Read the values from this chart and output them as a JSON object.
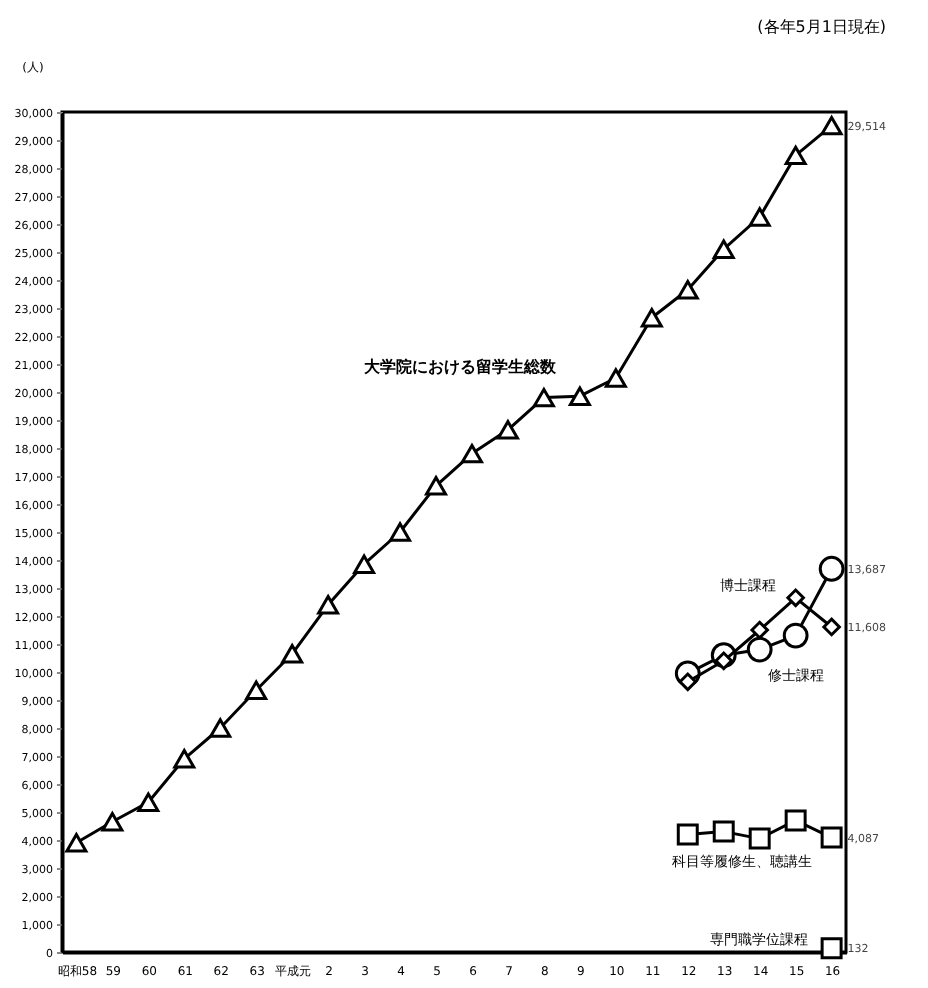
{
  "chart_data": {
    "type": "line",
    "ylabel": "(人)",
    "annotations": [
      "(各年5月1日現在)"
    ],
    "categories": [
      "昭和58",
      "59",
      "60",
      "61",
      "62",
      "63",
      "平成元",
      "2",
      "3",
      "4",
      "5",
      "6",
      "7",
      "8",
      "9",
      "10",
      "11",
      "12",
      "13",
      "14",
      "15",
      "16"
    ],
    "ylim": [
      0,
      30000
    ],
    "yticks": [
      0,
      {
        "value": 1000,
        "label": "1,000"
      },
      {
        "value": 2000,
        "label": "2,000"
      },
      {
        "value": 3000,
        "label": "3,000"
      },
      {
        "value": 4000,
        "label": "4,000"
      },
      {
        "value": 5000,
        "label": "5,000"
      },
      {
        "value": 6000,
        "label": "6,000"
      },
      {
        "value": 7000,
        "label": "7,000"
      },
      {
        "value": 8000,
        "label": "8,000"
      },
      {
        "value": 9000,
        "label": "9,000"
      },
      {
        "value": 10000,
        "label": "10,000"
      },
      {
        "value": 11000,
        "label": "11,000"
      },
      {
        "value": 12000,
        "label": "12,000"
      },
      {
        "value": 13000,
        "label": "13,000"
      },
      {
        "value": 14000,
        "label": "14,000"
      },
      {
        "value": 15000,
        "label": "15,000"
      },
      {
        "value": 16000,
        "label": "16,000"
      },
      {
        "value": 17000,
        "label": "17,000"
      },
      {
        "value": 18000,
        "label": "18,000"
      },
      {
        "value": 19000,
        "label": "19,000"
      },
      {
        "value": 20000,
        "label": "20,000"
      },
      {
        "value": 21000,
        "label": "21,000"
      },
      {
        "value": 22000,
        "label": "22,000"
      },
      {
        "value": 23000,
        "label": "23,000"
      },
      {
        "value": 24000,
        "label": "24,000"
      },
      {
        "value": 25000,
        "label": "25,000"
      },
      {
        "value": 26000,
        "label": "26,000"
      },
      {
        "value": 27000,
        "label": "27,000"
      },
      {
        "value": 28000,
        "label": "28,000"
      },
      {
        "value": 29000,
        "label": "29,000"
      },
      {
        "value": 30000,
        "label": "30,000"
      }
    ],
    "grid": false,
    "legend": false,
    "line_style": "solid",
    "series": [
      {
        "name": "大学院における留学生総数",
        "color": "#000000",
        "marker": "triangle",
        "values": [
          3900,
          4650,
          5350,
          6900,
          8000,
          9350,
          10650,
          12400,
          13850,
          15000,
          16650,
          17800,
          18650,
          19800,
          19850,
          20500,
          22650,
          23650,
          25100,
          26250,
          28450,
          29514
        ],
        "value_labels": [
          null,
          null,
          null,
          null,
          null,
          null,
          null,
          null,
          null,
          null,
          null,
          null,
          null,
          null,
          null,
          null,
          null,
          null,
          null,
          null,
          null,
          "29,514"
        ]
      },
      {
        "name": "修士課程",
        "color": "#000000",
        "marker": "circle",
        "values": [
          null,
          null,
          null,
          null,
          null,
          null,
          null,
          null,
          null,
          null,
          null,
          null,
          null,
          null,
          null,
          null,
          null,
          9950,
          10600,
          10800,
          11300,
          13687
        ],
        "value_labels": [
          null,
          null,
          null,
          null,
          null,
          null,
          null,
          null,
          null,
          null,
          null,
          null,
          null,
          null,
          null,
          null,
          null,
          null,
          null,
          null,
          null,
          "13,687"
        ]
      },
      {
        "name": "博士課程",
        "color": "#000000",
        "marker": "diamond",
        "values": [
          null,
          null,
          null,
          null,
          null,
          null,
          null,
          null,
          null,
          null,
          null,
          null,
          null,
          null,
          null,
          null,
          null,
          9650,
          10400,
          11500,
          12650,
          11608
        ],
        "value_labels": [
          null,
          null,
          null,
          null,
          null,
          null,
          null,
          null,
          null,
          null,
          null,
          null,
          null,
          null,
          null,
          null,
          null,
          null,
          null,
          null,
          null,
          "11,608"
        ]
      },
      {
        "name": "科目等履修生、聴講生",
        "color": "#000000",
        "marker": "square",
        "values": [
          null,
          null,
          null,
          null,
          null,
          null,
          null,
          null,
          null,
          null,
          null,
          null,
          null,
          null,
          null,
          null,
          null,
          4200,
          4300,
          4050,
          4700,
          4087
        ],
        "value_labels": [
          null,
          null,
          null,
          null,
          null,
          null,
          null,
          null,
          null,
          null,
          null,
          null,
          null,
          null,
          null,
          null,
          null,
          null,
          null,
          null,
          null,
          "4,087"
        ]
      },
      {
        "name": "専門職学位課程",
        "color": "#000000",
        "marker": "square",
        "values": [
          null,
          null,
          null,
          null,
          null,
          null,
          null,
          null,
          null,
          null,
          null,
          null,
          null,
          null,
          null,
          null,
          null,
          null,
          null,
          null,
          null,
          132
        ],
        "value_labels": [
          null,
          null,
          null,
          null,
          null,
          null,
          null,
          null,
          null,
          null,
          null,
          null,
          null,
          null,
          null,
          null,
          null,
          null,
          null,
          null,
          null,
          "132"
        ]
      }
    ]
  }
}
